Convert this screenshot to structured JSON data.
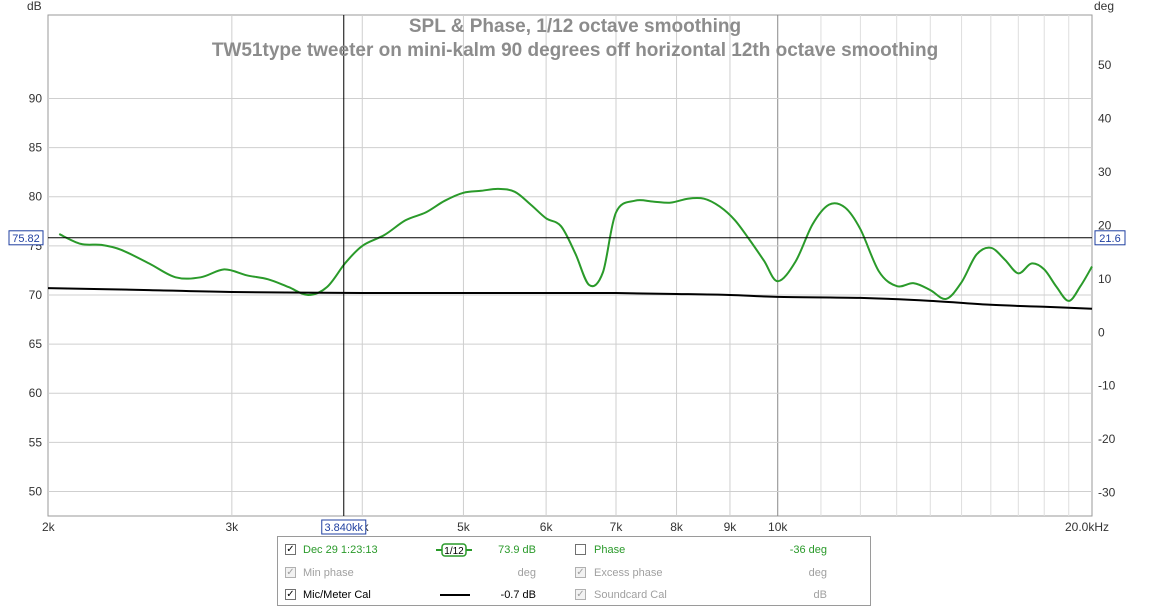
{
  "chart_data": {
    "type": "line",
    "title": "SPL & Phase, 1/12 octave smoothing",
    "subtitle": "TW51type tweeter on mini-kalm 90 degrees off horizontal 12th octave smoothing",
    "ylabel_left": "dB",
    "ylabel_right": "deg",
    "x_scale": "log",
    "xlim": [
      2000,
      20000
    ],
    "ylim_left": [
      47.5,
      98.5
    ],
    "ylim_right": [
      -34.4,
      59.4
    ],
    "grid": true,
    "x_ticks": [
      {
        "v": 2000,
        "label": "2k"
      },
      {
        "v": 3000,
        "label": "3k"
      },
      {
        "v": 4000,
        "label": "4k"
      },
      {
        "v": 5000,
        "label": "5k"
      },
      {
        "v": 6000,
        "label": "6k"
      },
      {
        "v": 7000,
        "label": "7k"
      },
      {
        "v": 8000,
        "label": "8k"
      },
      {
        "v": 9000,
        "label": "9k"
      },
      {
        "v": 10000,
        "label": "10k"
      },
      {
        "v": 20000,
        "label": "20.0kHz"
      }
    ],
    "x_minor_gridlines": [
      11000,
      12000,
      13000,
      14000,
      15000,
      16000,
      17000,
      18000,
      19000
    ],
    "y_left_ticks": [
      50,
      55,
      60,
      65,
      70,
      75,
      80,
      85,
      90
    ],
    "y_right_ticks": [
      -30,
      -20,
      -10,
      0,
      10,
      20,
      30,
      40,
      50
    ],
    "cursor": {
      "x_label": "3.840kk",
      "y_left_label": "75.82",
      "y_right_label": "21.6",
      "x": 3840,
      "y_db": 75.82
    },
    "series": [
      {
        "name": "Dec 29 1:23:13",
        "axis": "left",
        "color": "#2a9a2a",
        "x": [
          2050,
          2150,
          2250,
          2350,
          2500,
          2650,
          2800,
          2950,
          3100,
          3250,
          3400,
          3550,
          3700,
          3850,
          4000,
          4200,
          4400,
          4600,
          4800,
          5000,
          5200,
          5400,
          5600,
          5800,
          6000,
          6200,
          6400,
          6600,
          6800,
          7000,
          7300,
          7600,
          7900,
          8200,
          8500,
          8800,
          9100,
          9400,
          9700,
          10000,
          10400,
          10800,
          11200,
          11600,
          12000,
          12500,
          13000,
          13500,
          14000,
          14500,
          15000,
          15500,
          16000,
          16500,
          17000,
          17500,
          18000,
          18500,
          19000,
          19500,
          20000
        ],
        "y": [
          76.2,
          75.2,
          75.1,
          74.6,
          73.2,
          71.8,
          71.8,
          72.6,
          72.0,
          71.6,
          70.8,
          70.0,
          70.8,
          73.2,
          75.0,
          76.1,
          77.6,
          78.4,
          79.6,
          80.4,
          80.6,
          80.8,
          80.5,
          79.2,
          77.8,
          77.0,
          74.2,
          71.0,
          72.3,
          78.4,
          79.6,
          79.5,
          79.4,
          79.8,
          79.8,
          79.0,
          77.6,
          75.6,
          73.5,
          71.4,
          73.4,
          77.2,
          79.2,
          78.9,
          76.7,
          72.4,
          70.9,
          71.2,
          70.5,
          69.6,
          71.3,
          74.1,
          74.8,
          73.6,
          72.2,
          73.2,
          72.6,
          70.8,
          69.4,
          70.9,
          72.9
        ]
      },
      {
        "name": "Mic/Meter Cal",
        "axis": "left",
        "color": "#000000",
        "x": [
          2000,
          2500,
          3000,
          4000,
          5000,
          6000,
          7000,
          8000,
          9000,
          10000,
          12000,
          14000,
          16000,
          18000,
          20000
        ],
        "y": [
          70.7,
          70.5,
          70.3,
          70.2,
          70.2,
          70.2,
          70.2,
          70.1,
          70.0,
          69.8,
          69.7,
          69.4,
          69.0,
          68.8,
          68.6
        ]
      }
    ]
  },
  "legend": {
    "rows": [
      {
        "checked": true,
        "enabled": true,
        "name": "Dec 29 1:23:13",
        "swatch": "1/12",
        "value": "73.9 dB",
        "color": "#2a9a2a",
        "name2": "Phase",
        "checked2": false,
        "enabled2": true,
        "value2": "-36 deg",
        "color2": "#2a9a2a"
      },
      {
        "checked": true,
        "enabled": false,
        "name": "Min phase",
        "swatch": "",
        "value": "deg",
        "color": "#a0a0a0",
        "name2": "Excess phase",
        "checked2": true,
        "enabled2": false,
        "value2": "deg",
        "color2": "#a0a0a0"
      },
      {
        "checked": true,
        "enabled": true,
        "name": "Mic/Meter Cal",
        "swatch": "line",
        "value": "-0.7 dB",
        "color": "#000000",
        "name2": "Soundcard Cal",
        "checked2": true,
        "enabled2": false,
        "value2": "dB",
        "color2": "#a0a0a0"
      }
    ]
  }
}
